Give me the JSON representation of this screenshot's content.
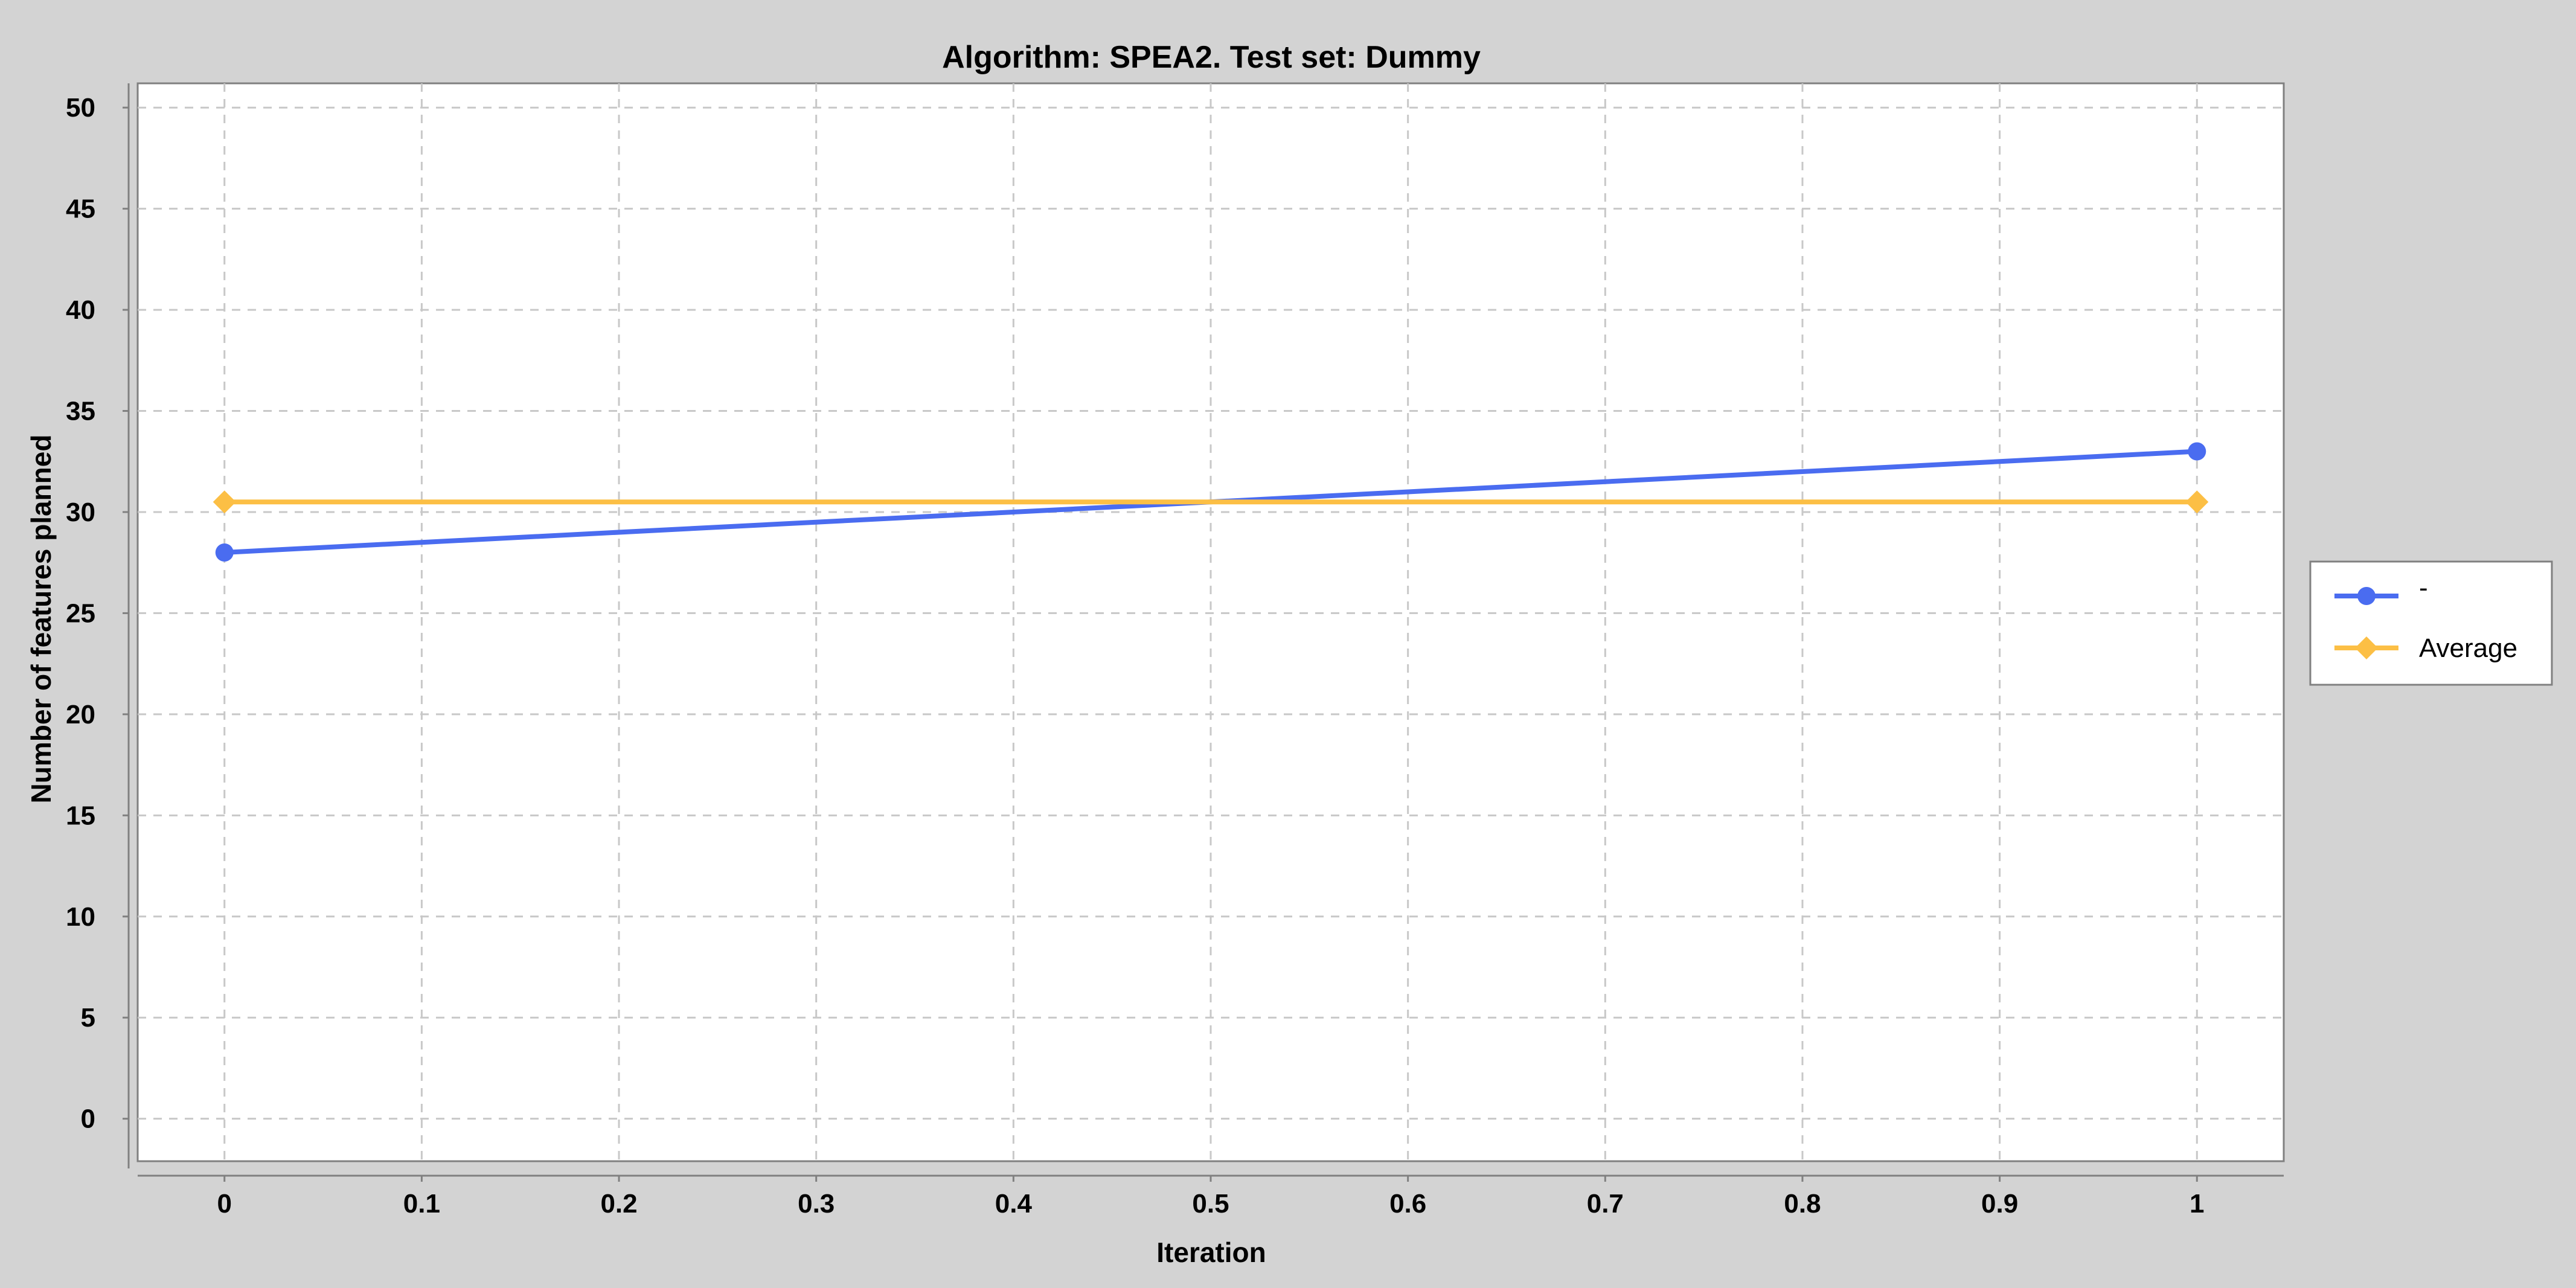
{
  "chart_data": {
    "type": "line",
    "title": "Algorithm: SPEA2. Test set: Dummy",
    "xlabel": "Iteration",
    "ylabel": "Number of features planned",
    "xlim": [
      -0.044,
      1.044
    ],
    "ylim": [
      -2.1,
      51.2
    ],
    "x_ticks": [
      0,
      0.1,
      0.2,
      0.3,
      0.4,
      0.5,
      0.6,
      0.7,
      0.8,
      0.9,
      1
    ],
    "x_tick_labels": [
      "0",
      "0.1",
      "0.2",
      "0.3",
      "0.4",
      "0.5",
      "0.6",
      "0.7",
      "0.8",
      "0.9",
      "1"
    ],
    "y_ticks": [
      0,
      5,
      10,
      15,
      20,
      25,
      30,
      35,
      40,
      45,
      50
    ],
    "y_tick_labels": [
      "0",
      "5",
      "10",
      "15",
      "20",
      "25",
      "30",
      "35",
      "40",
      "45",
      "50"
    ],
    "grid": true,
    "legend_position": "right",
    "series": [
      {
        "name": "-",
        "color": "#4a6cf0",
        "marker": "circle",
        "x": [
          0,
          1
        ],
        "y": [
          28,
          33
        ]
      },
      {
        "name": "Average",
        "color": "#fcbf45",
        "marker": "diamond",
        "x": [
          0,
          1
        ],
        "y": [
          30.5,
          30.5
        ]
      }
    ]
  }
}
